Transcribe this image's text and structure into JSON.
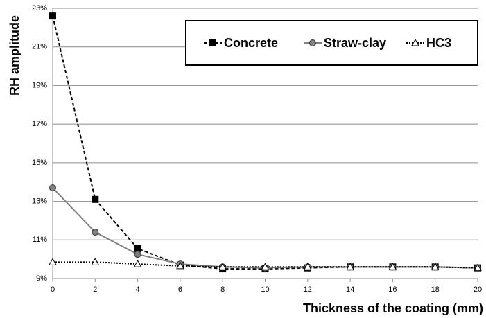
{
  "chart_data": {
    "type": "line",
    "x_label": "Thickness of the coating (mm)",
    "y_label": "RH amplitude",
    "x": [
      0,
      2,
      4,
      6,
      8,
      10,
      12,
      14,
      16,
      18,
      20
    ],
    "series": [
      {
        "name": "Concrete",
        "color": "#000000",
        "marker": "square",
        "dash": "dashed",
        "values": [
          22.6,
          13.1,
          10.55,
          9.7,
          9.5,
          9.5,
          9.55,
          9.6,
          9.6,
          9.6,
          9.55
        ]
      },
      {
        "name": "Straw-clay",
        "color": "#808080",
        "marker": "circle",
        "dash": "solid",
        "values": [
          13.7,
          11.4,
          10.25,
          9.75,
          9.6,
          9.55,
          9.6,
          9.6,
          9.6,
          9.6,
          9.55
        ]
      },
      {
        "name": "HC3",
        "color": "#000000",
        "marker": "triangle",
        "dash": "dotted",
        "values": [
          9.85,
          9.85,
          9.75,
          9.65,
          9.6,
          9.6,
          9.6,
          9.6,
          9.6,
          9.6,
          9.55
        ]
      }
    ],
    "xlim": [
      0,
      20
    ],
    "xticks": [
      0,
      2,
      4,
      6,
      8,
      10,
      12,
      14,
      16,
      18,
      20
    ],
    "ylim": [
      9,
      23
    ],
    "yticks": [
      {
        "value": 9,
        "label": "9%"
      },
      {
        "value": 11,
        "label": "11%"
      },
      {
        "value": 13,
        "label": "13%"
      },
      {
        "value": 15,
        "label": "15%"
      },
      {
        "value": 17,
        "label": "17%"
      },
      {
        "value": 19,
        "label": "19%"
      },
      {
        "value": 21,
        "label": "21%"
      },
      {
        "value": 23,
        "label": "23%"
      }
    ],
    "grid": true,
    "legend": "top-right"
  }
}
